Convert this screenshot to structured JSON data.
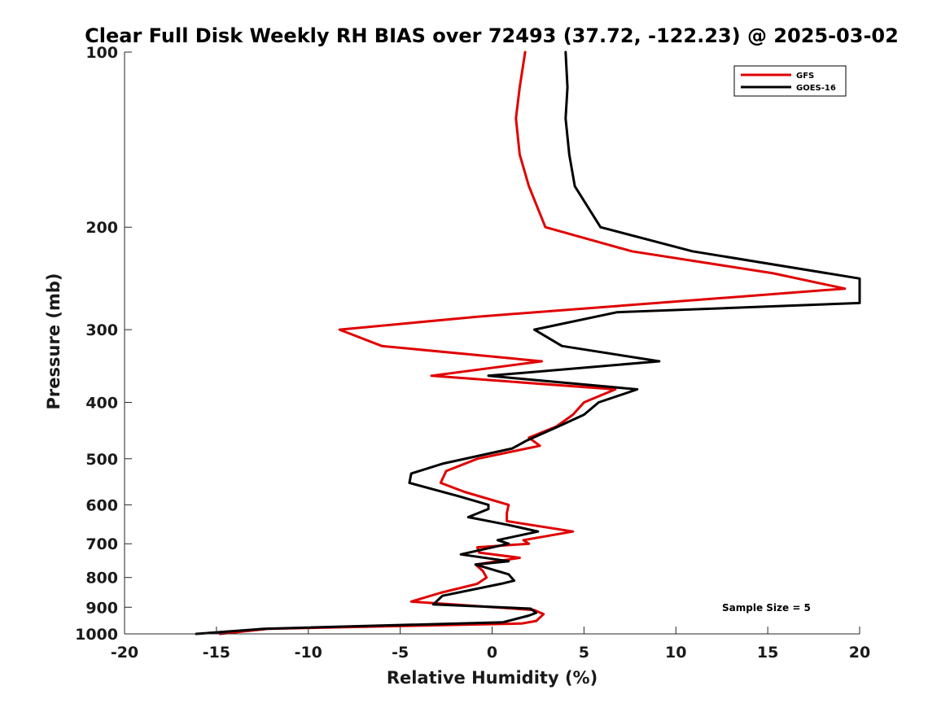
{
  "chart_data": {
    "type": "line",
    "title": "Clear Full Disk Weekly RH BIAS over 72493 (37.72, -122.23) @ 2025-03-02",
    "xlabel": "Relative Humidity (%)",
    "ylabel": "Pressure (mb)",
    "xlim": [
      -20,
      20
    ],
    "ylim": [
      100,
      1000
    ],
    "y_scale": "log",
    "y_reversed": true,
    "xticks": [
      -20,
      -15,
      -10,
      -5,
      0,
      5,
      10,
      15,
      20
    ],
    "xtick_labels": [
      "-20",
      "-15",
      "-10",
      "-5",
      "0",
      "5",
      "10",
      "15",
      "20"
    ],
    "yticks": [
      100,
      200,
      300,
      400,
      500,
      600,
      700,
      800,
      900,
      1000
    ],
    "ytick_labels": [
      "100",
      "200",
      "300",
      "400",
      "500",
      "600",
      "700",
      "800",
      "900",
      "1000"
    ],
    "grid": false,
    "legend_position": "top-right",
    "annotation": "Sample Size = 5",
    "series": [
      {
        "name": "GFS",
        "color": "#e00000",
        "points": [
          [
            1.8,
            100
          ],
          [
            1.5,
            115
          ],
          [
            1.3,
            130
          ],
          [
            1.5,
            150
          ],
          [
            2.0,
            170
          ],
          [
            2.9,
            200
          ],
          [
            7.6,
            220
          ],
          [
            15.3,
            240
          ],
          [
            19.2,
            255
          ],
          [
            -0.8,
            285
          ],
          [
            -8.3,
            300
          ],
          [
            -6.0,
            320
          ],
          [
            2.7,
            340
          ],
          [
            -3.3,
            360
          ],
          [
            6.7,
            380
          ],
          [
            5.0,
            400
          ],
          [
            4.4,
            420
          ],
          [
            3.5,
            440
          ],
          [
            2.0,
            460
          ],
          [
            2.6,
            475
          ],
          [
            -0.8,
            500
          ],
          [
            -2.5,
            525
          ],
          [
            -2.8,
            550
          ],
          [
            -1.5,
            570
          ],
          [
            0.9,
            600
          ],
          [
            0.8,
            620
          ],
          [
            0.8,
            640
          ],
          [
            4.4,
            667
          ],
          [
            1.7,
            690
          ],
          [
            2.0,
            700
          ],
          [
            -0.8,
            710
          ],
          [
            -0.7,
            725
          ],
          [
            1.5,
            740
          ],
          [
            -0.9,
            760
          ],
          [
            -0.5,
            780
          ],
          [
            -0.3,
            800
          ],
          [
            -0.8,
            820
          ],
          [
            -2.8,
            850
          ],
          [
            -4.4,
            880
          ],
          [
            2.3,
            910
          ],
          [
            2.8,
            925
          ],
          [
            2.4,
            950
          ],
          [
            1.6,
            960
          ],
          [
            -12.2,
            980
          ],
          [
            -14.8,
            1000
          ]
        ]
      },
      {
        "name": "GOES-16",
        "color": "#000000",
        "points": [
          [
            4.0,
            100
          ],
          [
            4.1,
            115
          ],
          [
            4.0,
            130
          ],
          [
            4.2,
            150
          ],
          [
            4.5,
            170
          ],
          [
            5.9,
            200
          ],
          [
            10.9,
            220
          ],
          [
            20.0,
            245
          ],
          [
            20.0,
            270
          ],
          [
            6.8,
            280
          ],
          [
            2.3,
            300
          ],
          [
            3.8,
            320
          ],
          [
            9.1,
            340
          ],
          [
            -0.2,
            360
          ],
          [
            7.9,
            380
          ],
          [
            5.8,
            400
          ],
          [
            5.0,
            420
          ],
          [
            3.6,
            440
          ],
          [
            1.9,
            465
          ],
          [
            1.1,
            480
          ],
          [
            -2.7,
            510
          ],
          [
            -4.4,
            530
          ],
          [
            -4.5,
            550
          ],
          [
            -1.8,
            580
          ],
          [
            -0.2,
            600
          ],
          [
            -0.2,
            610
          ],
          [
            -1.3,
            630
          ],
          [
            0.9,
            650
          ],
          [
            2.5,
            667
          ],
          [
            0.3,
            690
          ],
          [
            0.9,
            700
          ],
          [
            -1.7,
            730
          ],
          [
            0.9,
            750
          ],
          [
            -0.9,
            760
          ],
          [
            0.9,
            790
          ],
          [
            1.2,
            810
          ],
          [
            0.5,
            820
          ],
          [
            -2.7,
            860
          ],
          [
            -3.2,
            890
          ],
          [
            2.1,
            905
          ],
          [
            2.4,
            920
          ],
          [
            2.0,
            930
          ],
          [
            0.6,
            955
          ],
          [
            -12.4,
            980
          ],
          [
            -16.1,
            1000
          ]
        ]
      }
    ]
  }
}
